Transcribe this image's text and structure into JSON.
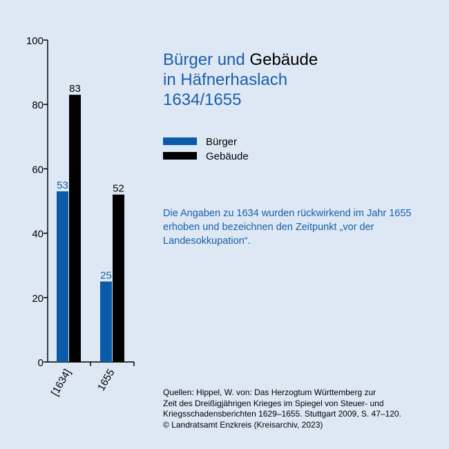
{
  "title": {
    "part1": "Bürger und ",
    "part2": "Gebäude",
    "line2": "in Häfnerhaslach",
    "line3": "1634/1655"
  },
  "legend": [
    {
      "label": "Bürger",
      "color": "#0a5aa8"
    },
    {
      "label": "Gebäude",
      "color": "#000000"
    }
  ],
  "note": "Die Angaben zu 1634 wurden rückwirkend im Jahr 1655 erhoben und bezeichnen den Zeitpunkt „vor der Landesokkupation“.",
  "sources": [
    "Quellen: Hippel, W. von: Das Herzogtum Württemberg zur",
    "Zeit des Dreißigjährigen Krieges im Spiegel von Steuer- und",
    "Kriegsschadensberichten 1629–1655. Stuttgart 2009, S. 47–120.",
    "© Landratsamt Enzkreis (Kreisarchiv, 2023)"
  ],
  "chart_data": {
    "type": "bar",
    "categories": [
      "[1634]",
      "1655"
    ],
    "series": [
      {
        "name": "Bürger",
        "values": [
          53,
          25
        ],
        "color": "#0a5aa8",
        "label_color": "#1a5ea8"
      },
      {
        "name": "Gebäude",
        "values": [
          83,
          52
        ],
        "color": "#000000",
        "label_color": "#000000"
      }
    ],
    "ylim": [
      0,
      100
    ],
    "yticks": [
      0,
      20,
      40,
      60,
      80,
      100
    ],
    "grid": false,
    "legend_position": "right"
  }
}
